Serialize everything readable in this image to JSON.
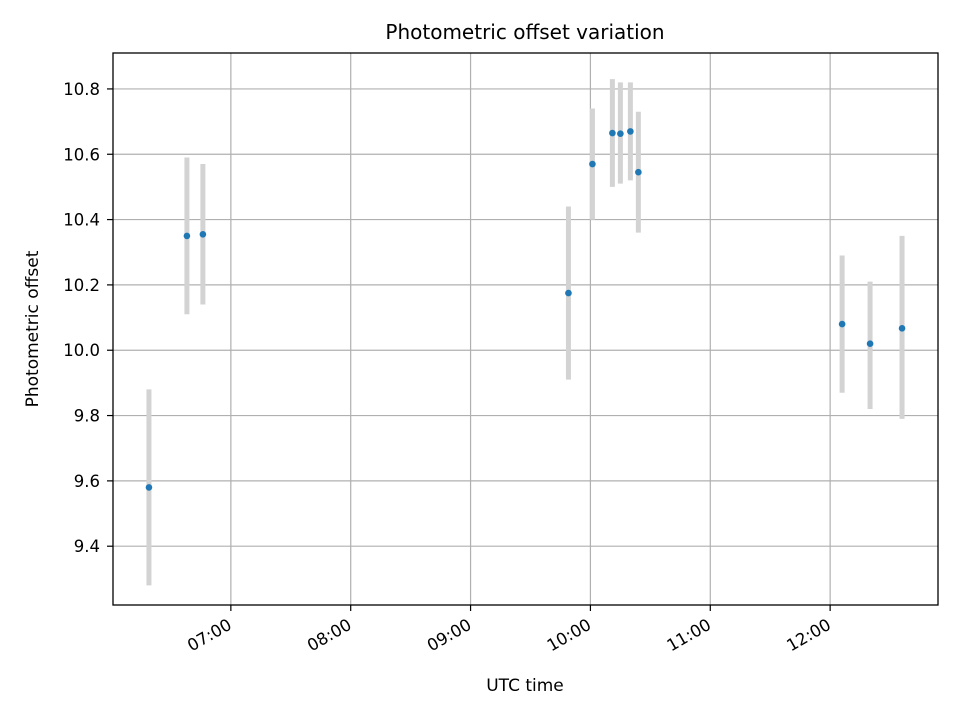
{
  "chart_data": {
    "type": "scatter",
    "title": "Photometric offset variation",
    "xlabel": "UTC time",
    "ylabel": "Photometric offset",
    "x_axis": "time",
    "xlim": [
      "06:01",
      "12:54"
    ],
    "ylim": [
      9.22,
      10.91
    ],
    "grid": true,
    "x_ticks": [
      "07:00",
      "08:00",
      "09:00",
      "10:00",
      "11:00",
      "12:00"
    ],
    "y_ticks": [
      9.4,
      9.6,
      9.8,
      10.0,
      10.2,
      10.4,
      10.6,
      10.8
    ],
    "series": [
      {
        "marker_color": "#1f77b4",
        "errorbar_color": "#d3d3d3",
        "points": [
          {
            "x": "06:19",
            "y": 9.58,
            "ylow": 9.28,
            "yhigh": 9.88
          },
          {
            "x": "06:38",
            "y": 10.35,
            "ylow": 10.11,
            "yhigh": 10.59
          },
          {
            "x": "06:46",
            "y": 10.355,
            "ylow": 10.14,
            "yhigh": 10.57
          },
          {
            "x": "09:49",
            "y": 10.175,
            "ylow": 9.91,
            "yhigh": 10.44
          },
          {
            "x": "10:01",
            "y": 10.57,
            "ylow": 10.4,
            "yhigh": 10.74
          },
          {
            "x": "10:11",
            "y": 10.665,
            "ylow": 10.5,
            "yhigh": 10.83
          },
          {
            "x": "10:15",
            "y": 10.663,
            "ylow": 10.51,
            "yhigh": 10.82
          },
          {
            "x": "10:20",
            "y": 10.67,
            "ylow": 10.52,
            "yhigh": 10.82
          },
          {
            "x": "10:24",
            "y": 10.545,
            "ylow": 10.36,
            "yhigh": 10.73
          },
          {
            "x": "12:06",
            "y": 10.08,
            "ylow": 9.87,
            "yhigh": 10.29
          },
          {
            "x": "12:20",
            "y": 10.02,
            "ylow": 9.82,
            "yhigh": 10.21
          },
          {
            "x": "12:36",
            "y": 10.067,
            "ylow": 9.79,
            "yhigh": 10.35
          }
        ]
      }
    ]
  }
}
